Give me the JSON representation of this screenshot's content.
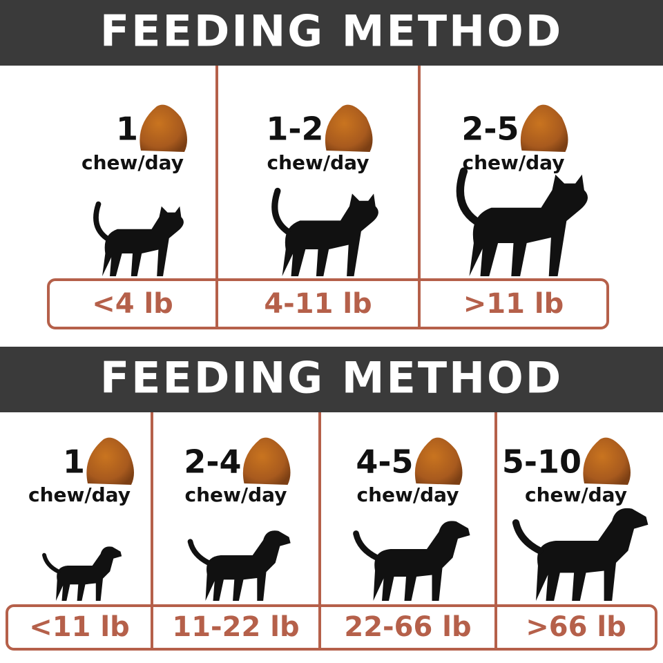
{
  "sections": [
    {
      "title": "FEEDING METHOD",
      "columns": [
        {
          "dose": "1",
          "unit": "chew/day",
          "weight": "<4 lb"
        },
        {
          "dose": "1-2",
          "unit": "chew/day",
          "weight": "4-11 lb"
        },
        {
          "dose": "2-5",
          "unit": "chew/day",
          "weight": ">11 lb"
        }
      ]
    },
    {
      "title": "FEEDING METHOD",
      "columns": [
        {
          "dose": "1",
          "unit": "chew/day",
          "weight": "<11 lb"
        },
        {
          "dose": "2-4",
          "unit": "chew/day",
          "weight": "11-22 lb"
        },
        {
          "dose": "4-5",
          "unit": "chew/day",
          "weight": "22-66 lb"
        },
        {
          "dose": "5-10",
          "unit": "chew/day",
          "weight": ">66 lb"
        }
      ]
    }
  ]
}
